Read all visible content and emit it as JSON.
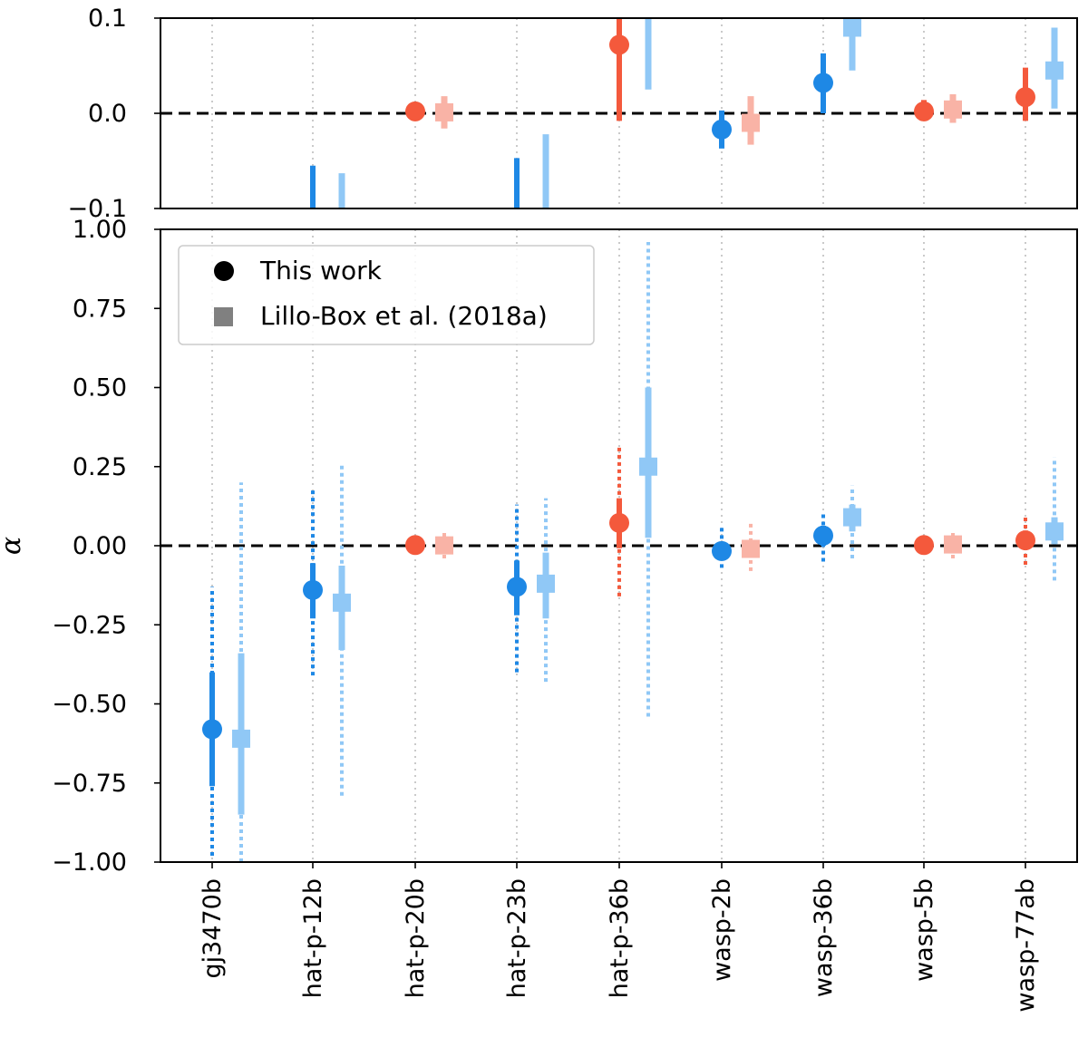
{
  "chart_data": {
    "type": "errorbar",
    "ylabel": "α",
    "categories": [
      "gj3470b",
      "hat-p-12b",
      "hat-p-20b",
      "hat-p-23b",
      "hat-p-36b",
      "wasp-2b",
      "wasp-36b",
      "wasp-5b",
      "wasp-77ab"
    ],
    "colors": {
      "retrograde": "#1e88e5",
      "prograde": "#f4593c",
      "grid": "#bdbdbd",
      "reference": "#000000"
    },
    "legend": {
      "placement": "upper-left",
      "entries": [
        {
          "label": "This work",
          "marker": "circle",
          "color": "#000000"
        },
        {
          "label": "Lillo-Box et al. (2018a)",
          "marker": "square",
          "color": "#808080"
        }
      ]
    },
    "panels": [
      {
        "name": "zoom",
        "ylim": [
          -0.1,
          0.1
        ],
        "yticks": [
          "−0.1",
          "0.0",
          "0.1"
        ],
        "reference_line": 0.0
      },
      {
        "name": "full",
        "ylim": [
          -1.0,
          1.0
        ],
        "yticks": [
          "−1.00",
          "−0.75",
          "−0.50",
          "−0.25",
          "0.00",
          "0.25",
          "0.50",
          "0.75",
          "1.00"
        ],
        "reference_line": 0.0
      }
    ],
    "series": [
      {
        "name": "This work",
        "marker": "circle",
        "points": [
          {
            "category": "gj3470b",
            "value": -0.58,
            "sigma1": [
              -0.76,
              -0.4
            ],
            "sigma2": [
              -0.98,
              -0.13
            ],
            "color": "#1e88e5"
          },
          {
            "category": "hat-p-12b",
            "value": -0.14,
            "sigma1": [
              -0.23,
              -0.055
            ],
            "sigma2": [
              -0.41,
              0.18
            ],
            "color": "#1e88e5"
          },
          {
            "category": "hat-p-20b",
            "value": 0.002,
            "sigma1": [
              0.0,
              0.004
            ],
            "sigma2": [
              -0.002,
              0.006
            ],
            "color": "#f4593c"
          },
          {
            "category": "hat-p-23b",
            "value": -0.13,
            "sigma1": [
              -0.22,
              -0.047
            ],
            "sigma2": [
              -0.4,
              0.13
            ],
            "color": "#1e88e5"
          },
          {
            "category": "hat-p-36b",
            "value": 0.072,
            "sigma1": [
              -0.008,
              0.15
            ],
            "sigma2": [
              -0.16,
              0.31
            ],
            "color": "#f4593c"
          },
          {
            "category": "wasp-2b",
            "value": -0.017,
            "sigma1": [
              -0.037,
              0.003
            ],
            "sigma2": [
              -0.07,
              0.06
            ],
            "color": "#1e88e5"
          },
          {
            "category": "wasp-36b",
            "value": 0.032,
            "sigma1": [
              0.0,
              0.063
            ],
            "sigma2": [
              -0.05,
              0.11
            ],
            "color": "#1e88e5"
          },
          {
            "category": "wasp-5b",
            "value": 0.002,
            "sigma1": [
              -0.008,
              0.014
            ],
            "sigma2": [
              -0.02,
              0.03
            ],
            "color": "#f4593c"
          },
          {
            "category": "wasp-77ab",
            "value": 0.017,
            "sigma1": [
              -0.008,
              0.048
            ],
            "sigma2": [
              -0.06,
              0.1
            ],
            "color": "#f4593c"
          }
        ]
      },
      {
        "name": "Lillo-Box et al. (2018a)",
        "marker": "square",
        "points": [
          {
            "category": "gj3470b",
            "value": -0.61,
            "sigma1": [
              -0.85,
              -0.34
            ],
            "sigma2": [
              -1.0,
              0.2
            ],
            "color": "#90c8f6"
          },
          {
            "category": "hat-p-12b",
            "value": -0.18,
            "sigma1": [
              -0.33,
              -0.063
            ],
            "sigma2": [
              -0.79,
              0.26
            ],
            "color": "#90c8f6"
          },
          {
            "category": "hat-p-20b",
            "value": 0.001,
            "sigma1": [
              -0.016,
              0.018
            ],
            "sigma2": [
              -0.04,
              0.04
            ],
            "color": "#f9b3a6"
          },
          {
            "category": "hat-p-23b",
            "value": -0.12,
            "sigma1": [
              -0.23,
              -0.022
            ],
            "sigma2": [
              -0.43,
              0.15
            ],
            "color": "#90c8f6"
          },
          {
            "category": "hat-p-36b",
            "value": 0.25,
            "sigma1": [
              0.025,
              0.5
            ],
            "sigma2": [
              -0.54,
              0.96
            ],
            "color": "#90c8f6"
          },
          {
            "category": "wasp-2b",
            "value": -0.01,
            "sigma1": [
              -0.033,
              0.018
            ],
            "sigma2": [
              -0.08,
              0.08
            ],
            "color": "#f9b3a6"
          },
          {
            "category": "wasp-36b",
            "value": 0.09,
            "sigma1": [
              0.045,
              0.13
            ],
            "sigma2": [
              -0.04,
              0.19
            ],
            "color": "#90c8f6"
          },
          {
            "category": "wasp-5b",
            "value": 0.004,
            "sigma1": [
              -0.01,
              0.02
            ],
            "sigma2": [
              -0.04,
              0.04
            ],
            "color": "#f9b3a6"
          },
          {
            "category": "wasp-77ab",
            "value": 0.045,
            "sigma1": [
              0.005,
              0.09
            ],
            "sigma2": [
              -0.11,
              0.28
            ],
            "color": "#90c8f6"
          }
        ]
      }
    ]
  }
}
